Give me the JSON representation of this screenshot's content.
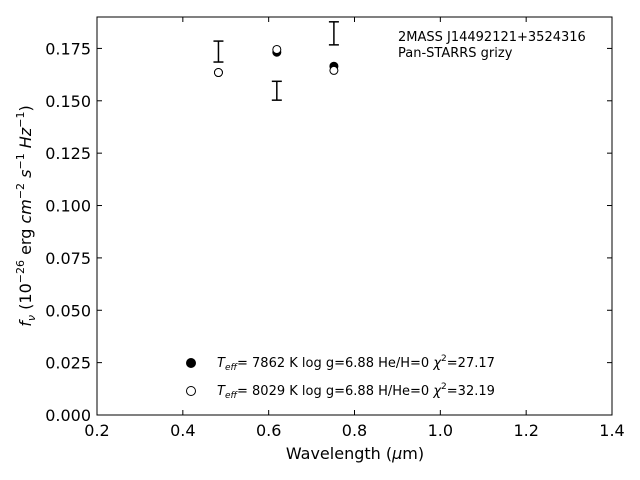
{
  "chart_data": {
    "type": "scatter",
    "xlabel": "Wavelength (μm)",
    "ylabel": "f_ν (10^-26 erg cm^-2 s^-1 Hz^-1)",
    "xlim": [
      0.2,
      1.4
    ],
    "ylim": [
      0.0,
      0.19
    ],
    "xticks": [
      "0.2",
      "0.4",
      "0.6",
      "0.8",
      "1.0",
      "1.2",
      "1.4"
    ],
    "yticks": [
      "0.000",
      "0.025",
      "0.050",
      "0.075",
      "0.100",
      "0.125",
      "0.150",
      "0.175"
    ],
    "grid": false,
    "legend_position": "bottom-center",
    "annotation": {
      "line1": "2MASS J14492121+3524316",
      "line2": "Pan-STARRS grizy"
    },
    "observed": {
      "x": [
        0.483,
        0.619,
        0.752
      ],
      "y": [
        0.1735,
        0.1548,
        0.1822
      ],
      "yerr": [
        0.005,
        0.0045,
        0.0055
      ]
    },
    "series": [
      {
        "name": "T_eff= 7862 K log g=6.88 He/H=0 χ²=27.17",
        "marker": "filled-circle",
        "x": [
          0.483,
          0.619,
          0.752
        ],
        "y": [
          0.1635,
          0.1732,
          0.1665
        ]
      },
      {
        "name": "T_eff= 8029 K log g=6.88 H/He=0 χ²=32.19",
        "marker": "open-circle",
        "x": [
          0.483,
          0.619,
          0.752
        ],
        "y": [
          0.1635,
          0.1745,
          0.1645
        ]
      }
    ],
    "legend": [
      {
        "teff": "7862",
        "logg": "log g=6.88",
        "comp": "He/H=0",
        "chi2": "=27.17"
      },
      {
        "teff": "8029",
        "logg": "log g=6.88",
        "comp": "H/He=0",
        "chi2": "=32.19"
      }
    ]
  }
}
